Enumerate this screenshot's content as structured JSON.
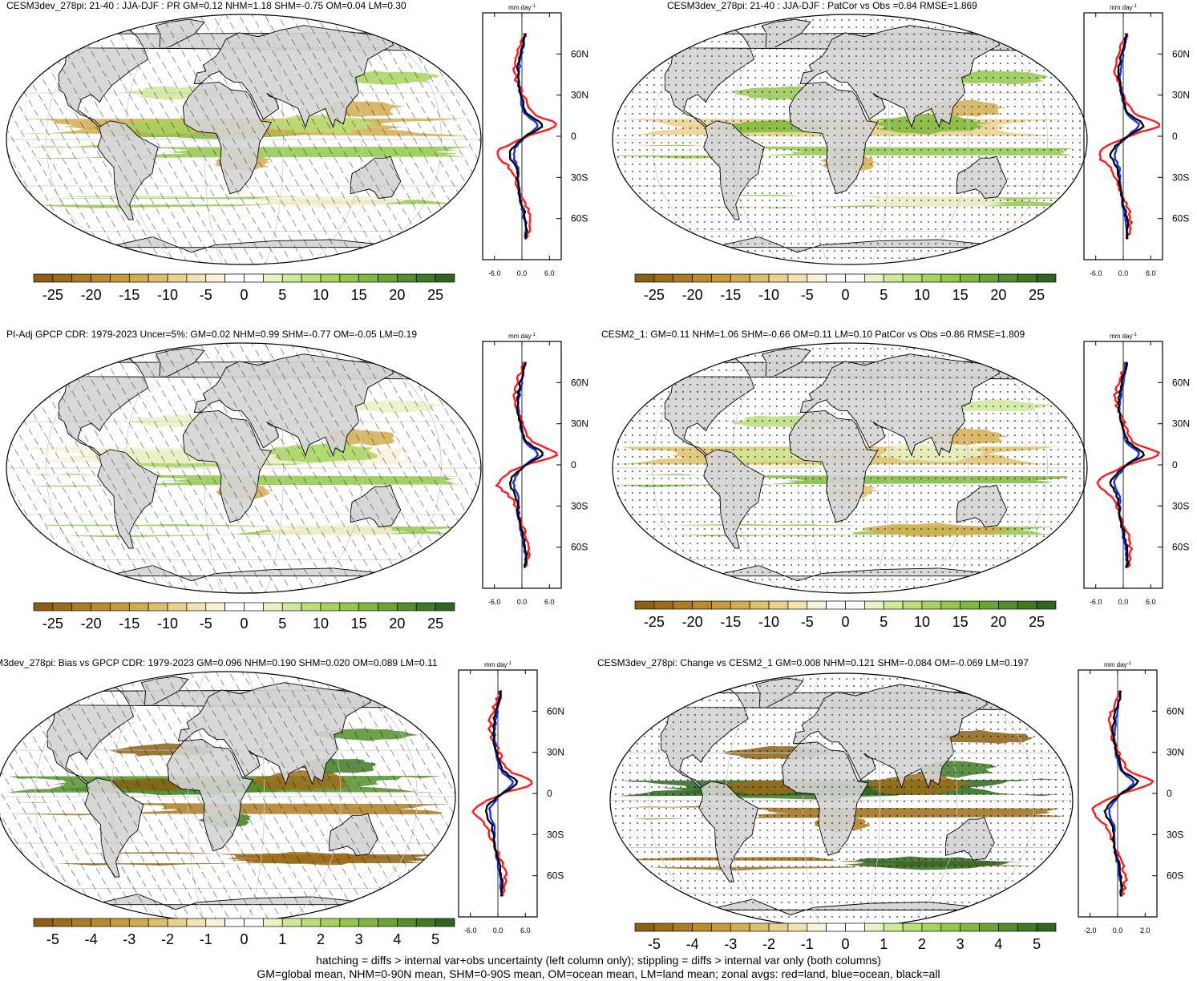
{
  "panels": [
    {
      "title": "CESM3dev_278pi: 21-40 : JJA-DJF : PR GM=0.12 NHM=1.18 SHM=-0.75 OM=0.04 LM=0.30",
      "pattern": "hatch",
      "zonal": {
        "unit": "mm day",
        "unit_exp": "-1",
        "xticks": [
          "-6.0",
          "0.0",
          "6.0"
        ],
        "xrange": [
          -6,
          6
        ],
        "ylabels": [
          "60N",
          "30N",
          "0",
          "30S",
          "60S"
        ]
      },
      "colorbar": {
        "labels": [
          "-25",
          "-20",
          "-15",
          "-10",
          "-5",
          "0",
          "5",
          "10",
          "15",
          "20",
          "25"
        ]
      }
    },
    {
      "title": "CESM3dev_278pi: 21-40 : JJA-DJF : PatCor vs Obs =0.84 RMSE=1.869",
      "pattern": "stipple",
      "zonal": {
        "unit": "mm day",
        "unit_exp": "-1",
        "xticks": [
          "-6.0",
          "0.0",
          "6.0"
        ],
        "xrange": [
          -6,
          6
        ],
        "ylabels": [
          "60N",
          "30N",
          "0",
          "30S",
          "60S"
        ]
      },
      "colorbar": {
        "labels": [
          "-25",
          "-20",
          "-15",
          "-10",
          "-5",
          "0",
          "5",
          "10",
          "15",
          "20",
          "25"
        ]
      }
    },
    {
      "title": "PI-Adj GPCP CDR: 1979-2023 Uncer=5%: GM=0.02 NHM=0.99 SHM=-0.77 OM=-0.05 LM=0.19",
      "pattern": "hatch",
      "zonal": {
        "unit": "mm day",
        "unit_exp": "-1",
        "xticks": [
          "-6.0",
          "0.0",
          "6.0"
        ],
        "xrange": [
          -6,
          6
        ],
        "ylabels": [
          "60N",
          "30N",
          "0",
          "30S",
          "60S"
        ]
      },
      "colorbar": {
        "labels": [
          "-25",
          "-20",
          "-15",
          "-10",
          "-5",
          "0",
          "5",
          "10",
          "15",
          "20",
          "25"
        ]
      }
    },
    {
      "title": "CESM2_1: GM=0.11 NHM=1.06 SHM=-0.66 OM=0.11 LM=0.10 PatCor vs Obs =0.86 RMSE=1.809",
      "pattern": "stipple",
      "zonal": {
        "unit": "mm day",
        "unit_exp": "-1",
        "xticks": [
          "-6.0",
          "0.0",
          "6.0"
        ],
        "xrange": [
          -6,
          6
        ],
        "ylabels": [
          "60N",
          "30N",
          "0",
          "30S",
          "60S"
        ]
      },
      "colorbar": {
        "labels": [
          "-25",
          "-20",
          "-15",
          "-10",
          "-5",
          "0",
          "5",
          "10",
          "15",
          "20",
          "25"
        ]
      }
    },
    {
      "title": "M3dev_278pi: Bias vs GPCP CDR: 1979-2023 GM=0.096 NHM=0.190 SHM=0.020 OM=0.089 LM=0.11",
      "pattern": "hatch",
      "zonal": {
        "unit": "mm day",
        "unit_exp": "-1",
        "xticks": [
          "-6.0",
          "0.0",
          "6.0"
        ],
        "xrange": [
          -6,
          6
        ],
        "ylabels": [
          "60N",
          "30N",
          "0",
          "30S",
          "60S"
        ]
      },
      "colorbar": {
        "labels": [
          "-5",
          "-4",
          "-3",
          "-2",
          "-1",
          "0",
          "1",
          "2",
          "3",
          "4",
          "5"
        ]
      }
    },
    {
      "title": "CESM3dev_278pi: Change vs CESM2_1 GM=0.008 NHM=0.121 SHM=-0.084 OM=-0.069 LM=0.197",
      "pattern": "stipple",
      "zonal": {
        "unit": "mm day",
        "unit_exp": "-1",
        "xticks": [
          "-2.0",
          "0.0",
          "2.0"
        ],
        "xrange": [
          -2,
          2
        ],
        "ylabels": [
          "60N",
          "30N",
          "0",
          "30S",
          "60S"
        ]
      },
      "colorbar": {
        "labels": [
          "-5",
          "-4",
          "-3",
          "-2",
          "-1",
          "0",
          "1",
          "2",
          "3",
          "4",
          "5"
        ]
      }
    }
  ],
  "colors": {
    "scale": [
      "#8c6014",
      "#9c6d1a",
      "#ac7b22",
      "#bb8a2c",
      "#c89a3a",
      "#d4ac50",
      "#dfbf6c",
      "#e9d18e",
      "#f2e2b3",
      "#faf1d9",
      "#ffffff",
      "#ffffff",
      "#e6f3c4",
      "#cfe89a",
      "#bade78",
      "#a6d35e",
      "#92c74b",
      "#7eb83d",
      "#69a533",
      "#548f2b",
      "#407a24",
      "#2e6520"
    ],
    "land": "#d4d4d4",
    "land_curve": "#ff1a1a",
    "ocean_curve": "#1a2fe6",
    "all_curve": "#000000"
  },
  "footer": {
    "line1": "hatching = diffs > internal var+obs uncertainty (left column only); stippling = diffs > internal var only (both columns)",
    "line2": "GM=global mean, NHM=0-90N mean, SHM=0-90S mean, OM=ocean mean, LM=land mean; zonal avgs: red=land, blue=ocean, black=all"
  }
}
